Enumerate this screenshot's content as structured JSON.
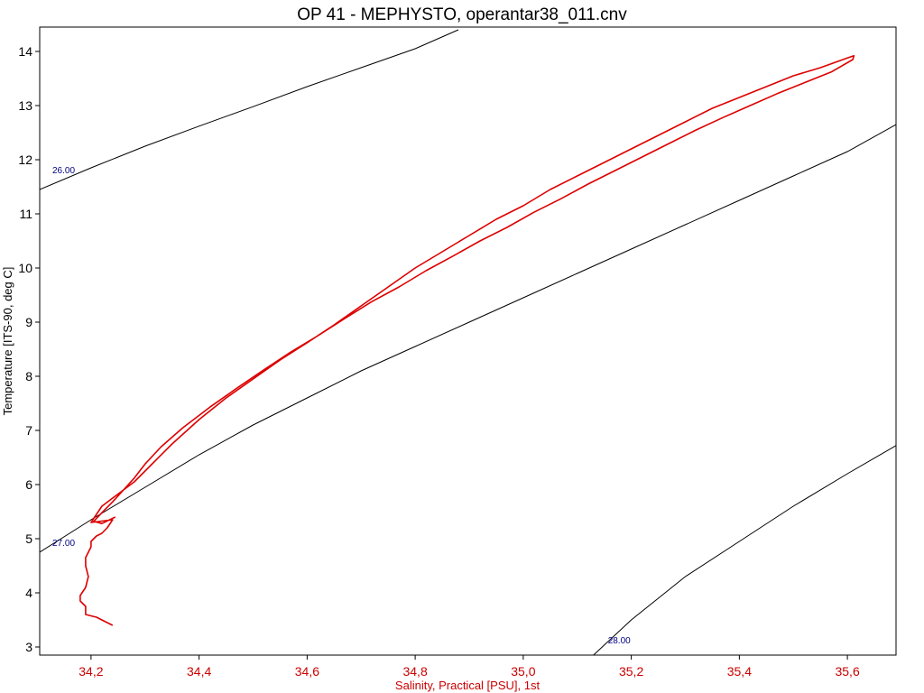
{
  "chart_data": {
    "type": "line",
    "title": "OP 41 - MEPHYSTO, operantar38_011.cnv",
    "xlabel": "Salinity, Practical [PSU], 1st",
    "ylabel": "Temperature [ITS-90, deg C]",
    "xlim": [
      34.105,
      35.69
    ],
    "ylim": [
      2.85,
      14.45
    ],
    "x_ticks": [
      34.2,
      34.4,
      34.6,
      34.8,
      35.0,
      35.2,
      35.4,
      35.6
    ],
    "x_tick_labels": [
      "34,2",
      "34,4",
      "34,6",
      "34,8",
      "35,0",
      "35,2",
      "35,4",
      "35,6"
    ],
    "y_ticks": [
      3,
      4,
      5,
      6,
      7,
      8,
      9,
      10,
      11,
      12,
      13,
      14
    ],
    "y_tick_labels": [
      "3",
      "4",
      "5",
      "6",
      "7",
      "8",
      "9",
      "10",
      "11",
      "12",
      "13",
      "14"
    ],
    "grid": false,
    "colors": {
      "profile": "#dd0000",
      "x_axis_text": "#cc0000",
      "isopycnal": "#000000",
      "isopycnal_label": "#000080"
    },
    "isopycnals": [
      {
        "label": "26.00",
        "x": [
          34.105,
          34.2,
          34.3,
          34.4,
          34.5,
          34.6,
          34.7,
          34.8,
          34.88
        ],
        "y": [
          11.45,
          11.85,
          12.25,
          12.62,
          12.98,
          13.35,
          13.7,
          14.05,
          14.4
        ]
      },
      {
        "label": "27.00",
        "x": [
          34.105,
          34.2,
          34.3,
          34.4,
          34.5,
          34.6,
          34.7,
          34.8,
          34.9,
          35.0,
          35.1,
          35.2,
          35.3,
          35.4,
          35.5,
          35.6,
          35.69
        ],
        "y": [
          4.75,
          5.35,
          5.95,
          6.55,
          7.1,
          7.6,
          8.1,
          8.55,
          9.0,
          9.45,
          9.9,
          10.35,
          10.8,
          11.25,
          11.7,
          12.15,
          12.65
        ]
      },
      {
        "label": "28.00",
        "x": [
          35.13,
          35.2,
          35.3,
          35.4,
          35.5,
          35.6,
          35.69
        ],
        "y": [
          2.85,
          3.5,
          4.3,
          4.95,
          5.6,
          6.2,
          6.72
        ]
      }
    ],
    "series": [
      {
        "x": [
          34.24,
          34.23,
          34.21,
          34.19,
          34.19,
          34.18,
          34.18,
          34.19,
          34.195,
          34.19,
          34.19,
          34.2,
          34.2,
          34.21,
          34.22,
          34.23,
          34.24,
          34.2,
          34.21,
          34.22,
          34.24,
          34.26,
          34.28,
          34.3,
          34.32,
          34.35,
          34.4,
          34.45,
          34.5,
          34.55,
          34.6,
          34.65,
          34.7,
          34.75,
          34.8,
          34.85,
          34.9,
          34.95,
          35.0,
          35.05,
          35.1,
          35.15,
          35.2,
          35.25,
          35.3,
          35.35,
          35.4,
          35.45,
          35.5,
          35.55,
          35.6,
          35.612,
          35.61,
          35.57,
          35.52,
          35.47,
          35.42,
          35.37,
          35.32,
          35.27,
          35.22,
          35.17,
          35.12,
          35.07,
          35.02,
          34.97,
          34.92,
          34.87,
          34.82,
          34.77,
          34.72,
          34.67,
          34.62,
          34.57,
          34.52,
          34.47,
          34.42,
          34.37,
          34.33,
          34.3,
          34.28,
          34.26,
          34.24,
          34.22,
          34.205,
          34.22,
          34.245
        ],
        "y": [
          3.4,
          3.45,
          3.55,
          3.6,
          3.75,
          3.85,
          3.95,
          4.1,
          4.3,
          4.5,
          4.65,
          4.85,
          4.95,
          5.05,
          5.1,
          5.2,
          5.35,
          5.3,
          5.45,
          5.6,
          5.75,
          5.9,
          6.05,
          6.25,
          6.45,
          6.75,
          7.2,
          7.6,
          7.95,
          8.3,
          8.62,
          8.95,
          9.3,
          9.65,
          10.0,
          10.3,
          10.6,
          10.9,
          11.15,
          11.45,
          11.7,
          11.95,
          12.2,
          12.45,
          12.7,
          12.95,
          13.15,
          13.35,
          13.55,
          13.7,
          13.88,
          13.92,
          13.85,
          13.62,
          13.42,
          13.22,
          13.0,
          12.78,
          12.55,
          12.3,
          12.05,
          11.8,
          11.55,
          11.28,
          11.03,
          10.75,
          10.5,
          10.22,
          9.95,
          9.65,
          9.38,
          9.07,
          8.75,
          8.45,
          8.12,
          7.78,
          7.43,
          7.05,
          6.7,
          6.38,
          6.12,
          5.9,
          5.68,
          5.48,
          5.32,
          5.28,
          5.4
        ]
      }
    ]
  }
}
